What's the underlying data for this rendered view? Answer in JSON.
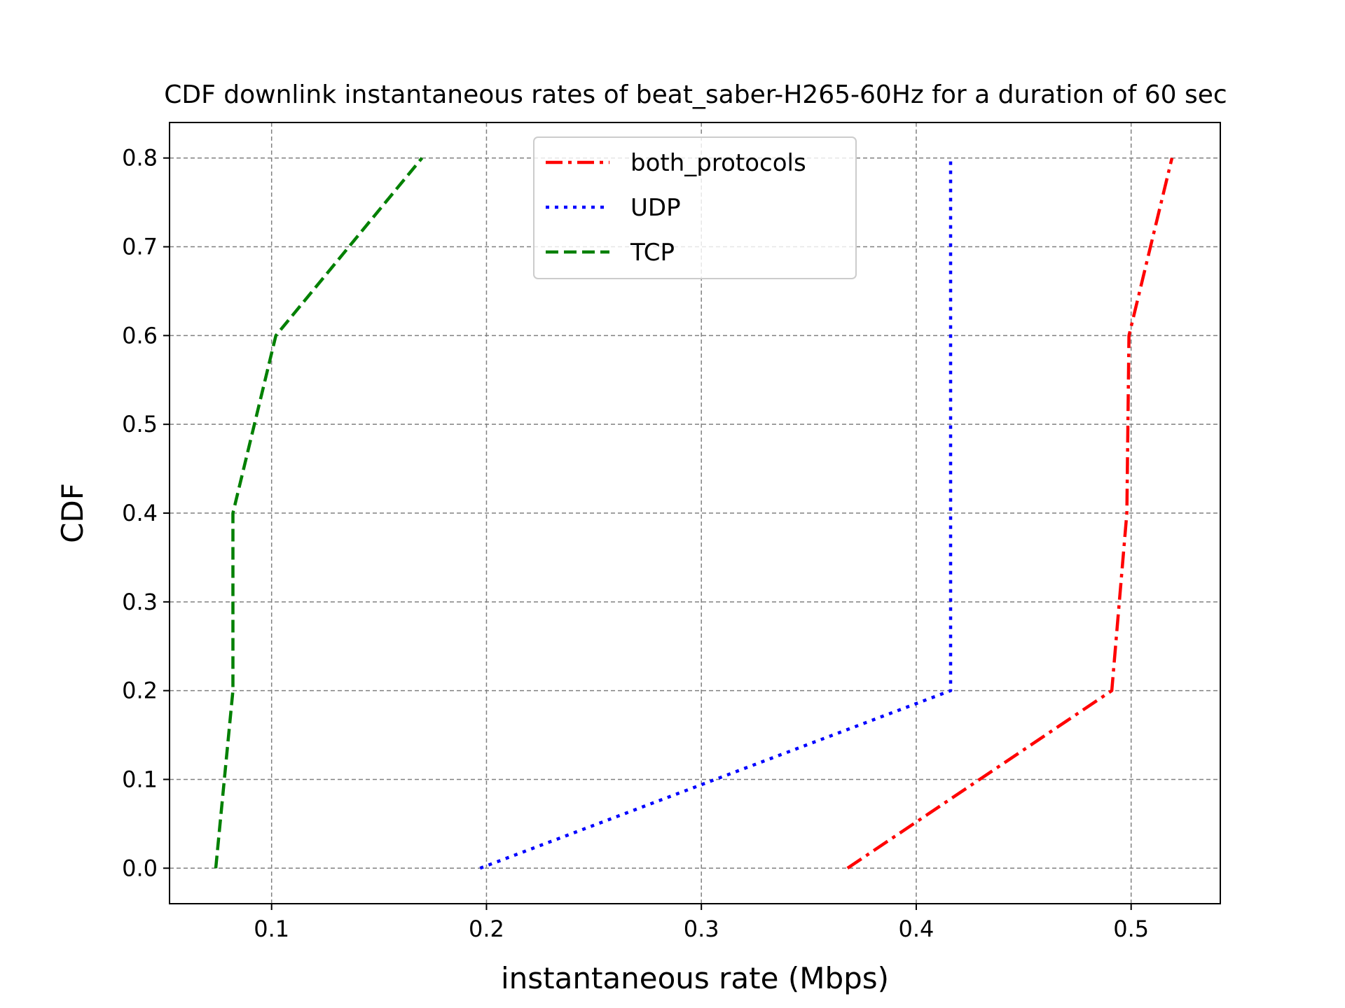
{
  "chart_data": {
    "type": "line",
    "title": "CDF downlink instantaneous rates of beat_saber-H265-60Hz for a duration of 60 sec",
    "xlabel": "instantaneous rate (Mbps)",
    "ylabel": "CDF",
    "xlim": [
      0.0525,
      0.5415
    ],
    "ylim": [
      -0.04,
      0.84
    ],
    "xticks": [
      0.1,
      0.2,
      0.3,
      0.4,
      0.5
    ],
    "xtick_labels": [
      "0.1",
      "0.2",
      "0.3",
      "0.4",
      "0.5"
    ],
    "yticks": [
      0.0,
      0.1,
      0.2,
      0.3,
      0.4,
      0.5,
      0.6,
      0.7,
      0.8
    ],
    "ytick_labels": [
      "0.0",
      "0.1",
      "0.2",
      "0.3",
      "0.4",
      "0.5",
      "0.6",
      "0.7",
      "0.8"
    ],
    "grid": true,
    "legend_position": "top-center",
    "series": [
      {
        "name": "both_protocols",
        "color": "#ff0000",
        "style": "dashdot",
        "x": [
          0.368,
          0.491,
          0.498,
          0.499,
          0.519
        ],
        "y": [
          0.0,
          0.2,
          0.4,
          0.6,
          0.8
        ]
      },
      {
        "name": "UDP",
        "color": "#0000ff",
        "style": "dotted",
        "x": [
          0.197,
          0.416,
          0.416,
          0.416,
          0.416
        ],
        "y": [
          0.0,
          0.2,
          0.4,
          0.6,
          0.8
        ]
      },
      {
        "name": "TCP",
        "color": "#008000",
        "style": "dashed",
        "x": [
          0.074,
          0.082,
          0.082,
          0.102,
          0.17
        ],
        "y": [
          0.0,
          0.2,
          0.4,
          0.6,
          0.8
        ]
      }
    ]
  }
}
